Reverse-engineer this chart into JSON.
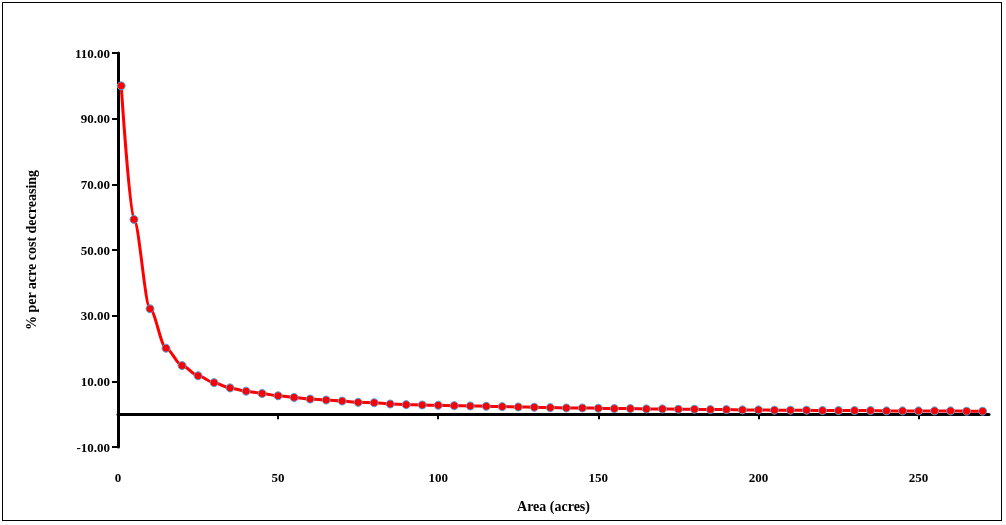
{
  "chart_data": {
    "type": "line",
    "xlabel": "Area (acres)",
    "ylabel": "% per acre cost decreasing",
    "x": [
      1,
      5,
      10,
      15,
      20,
      25,
      30,
      35,
      40,
      45,
      50,
      55,
      60,
      65,
      70,
      75,
      80,
      85,
      90,
      95,
      100,
      105,
      110,
      115,
      120,
      125,
      130,
      135,
      140,
      145,
      150,
      155,
      160,
      165,
      170,
      175,
      180,
      185,
      190,
      195,
      200,
      205,
      210,
      215,
      220,
      225,
      230,
      235,
      240,
      245,
      250,
      255,
      260,
      265,
      270
    ],
    "series": [
      {
        "color": "#ff0000",
        "values": [
          100,
          59.3,
          32.1,
          20.1,
          14.8,
          11.7,
          9.6,
          8.0,
          7.0,
          6.3,
          5.6,
          5.1,
          4.6,
          4.3,
          4.0,
          3.6,
          3.5,
          3.1,
          2.9,
          2.8,
          2.7,
          2.6,
          2.5,
          2.4,
          2.3,
          2.2,
          2.1,
          2.0,
          1.9,
          1.9,
          1.8,
          1.7,
          1.7,
          1.6,
          1.6,
          1.5,
          1.5,
          1.4,
          1.4,
          1.3,
          1.3,
          1.2,
          1.2,
          1.2,
          1.1,
          1.1,
          1.1,
          1.1,
          1.0,
          1.0,
          1.0,
          1.0,
          1.0,
          0.9,
          0.9
        ]
      }
    ],
    "xlim": [
      0,
      272
    ],
    "xticks": [
      0,
      50,
      100,
      150,
      200,
      250
    ],
    "ylim": [
      -10,
      110
    ],
    "yticks": [
      {
        "value": -10,
        "label": "-10.00"
      },
      {
        "value": 10,
        "label": "10.00"
      },
      {
        "value": 30,
        "label": "30.00"
      },
      {
        "value": 50,
        "label": "50.00"
      },
      {
        "value": 70,
        "label": "70.00"
      },
      {
        "value": 90,
        "label": "90.00"
      },
      {
        "value": 110,
        "label": "110.00"
      }
    ],
    "grid": false,
    "marker": "circle",
    "line_style": "solid"
  }
}
